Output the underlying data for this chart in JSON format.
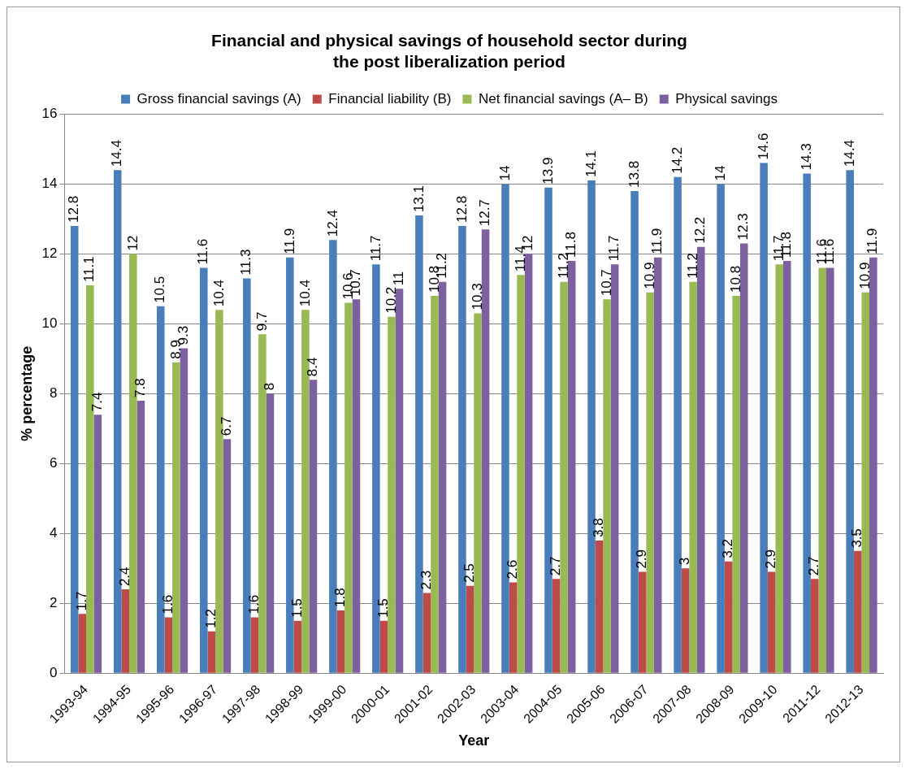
{
  "chart_data": {
    "type": "bar",
    "title": "Financial and physical savings of household sector during the post liberalization period",
    "xlabel": "Year",
    "ylabel": "% percentage",
    "categories": [
      "1993-94",
      "1994-95",
      "1995-96",
      "1996-97",
      "1997-98",
      "1998-99",
      "1999-00",
      "2000-01",
      "2001-02",
      "2002-03",
      "2003-04",
      "2004-05",
      "2005-06",
      "2006-07",
      "2007-08",
      "2008-09",
      "2009-10",
      "2011-12",
      "2012-13"
    ],
    "series": [
      {
        "name": "Gross financial savings (A)",
        "color": "#4a7ebb",
        "values": [
          12.8,
          14.4,
          10.5,
          11.6,
          11.3,
          11.9,
          12.4,
          11.7,
          13.1,
          12.8,
          14,
          13.9,
          14.1,
          13.8,
          14.2,
          14,
          14.6,
          14.3,
          14.4
        ]
      },
      {
        "name": "Financial liability (B)",
        "color": "#be4b48",
        "values": [
          1.7,
          2.4,
          1.6,
          1.2,
          1.6,
          1.5,
          1.8,
          1.5,
          2.3,
          2.5,
          2.6,
          2.7,
          3.8,
          2.9,
          3,
          3.2,
          2.9,
          2.7,
          3.5
        ]
      },
      {
        "name": "Net financial savings (A– B)",
        "color": "#98b954",
        "values": [
          11.1,
          12,
          8.9,
          10.4,
          9.7,
          10.4,
          10.6,
          10.2,
          10.8,
          10.3,
          11.4,
          11.2,
          10.7,
          10.9,
          11.2,
          10.8,
          11.7,
          11.6,
          10.9
        ]
      },
      {
        "name": "Physical savings",
        "color": "#7d60a0",
        "values": [
          7.4,
          7.8,
          9.3,
          6.7,
          8,
          8.4,
          10.7,
          11,
          11.2,
          12.7,
          12,
          11.8,
          11.7,
          11.9,
          12.2,
          12.3,
          11.8,
          11.6,
          11.9
        ]
      }
    ],
    "ylim": [
      0,
      16
    ],
    "yticks": [
      0,
      2,
      4,
      6,
      8,
      10,
      12,
      14,
      16
    ],
    "grid": "y",
    "legend": "top",
    "data_labels": true
  }
}
